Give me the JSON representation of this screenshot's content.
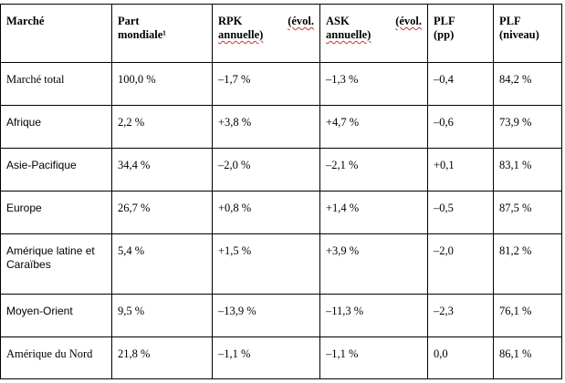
{
  "headers": {
    "market": "Marché",
    "share_line1": "Part",
    "share_line2": "mondiale¹",
    "rpk_a": "RPK",
    "rpk_b": "(évol.",
    "rpk_c": "annuelle)",
    "ask_a": "ASK",
    "ask_b": "(évol.",
    "ask_c": "annuelle)",
    "plf_pp_line1": "PLF",
    "plf_pp_line2": "(pp)",
    "plf_lvl_line1": "PLF",
    "plf_lvl_line2": "(niveau)"
  },
  "rows": [
    {
      "market": "Marché total",
      "share": "100,0 %",
      "rpk": "–1,7 %",
      "ask": "–1,3 %",
      "plf_pp": "–0,4",
      "plf_level": "84,2 %"
    },
    {
      "market": "Afrique",
      "share": "2,2 %",
      "rpk": "+3,8 %",
      "ask": "+4,7 %",
      "plf_pp": "–0,6",
      "plf_level": "73,9 %"
    },
    {
      "market": "Asie-Pacifique",
      "share": "34,4 %",
      "rpk": "–2,0 %",
      "ask": "–2,1 %",
      "plf_pp": "+0,1",
      "plf_level": "83,1 %"
    },
    {
      "market": "Europe",
      "share": "26,7 %",
      "rpk": "+0,8 %",
      "ask": "+1,4 %",
      "plf_pp": "–0,5",
      "plf_level": "87,5 %"
    },
    {
      "market_line1": "Amérique latine et",
      "market_line2": "Caraïbes",
      "share": "5,4 %",
      "rpk": "+1,5 %",
      "ask": "+3,9 %",
      "plf_pp": "–2,0",
      "plf_level": "81,2 %"
    },
    {
      "market": "Moyen-Orient",
      "share": "9,5 %",
      "rpk": "–13,9 %",
      "ask": "–11,3 %",
      "plf_pp": "–2,3",
      "plf_level": "76,1 %"
    },
    {
      "market": "Amérique du Nord",
      "share": "21,8 %",
      "rpk": "–1,1 %",
      "ask": "–1,1 %",
      "plf_pp": "0,0",
      "plf_level": "86,1 %"
    }
  ]
}
